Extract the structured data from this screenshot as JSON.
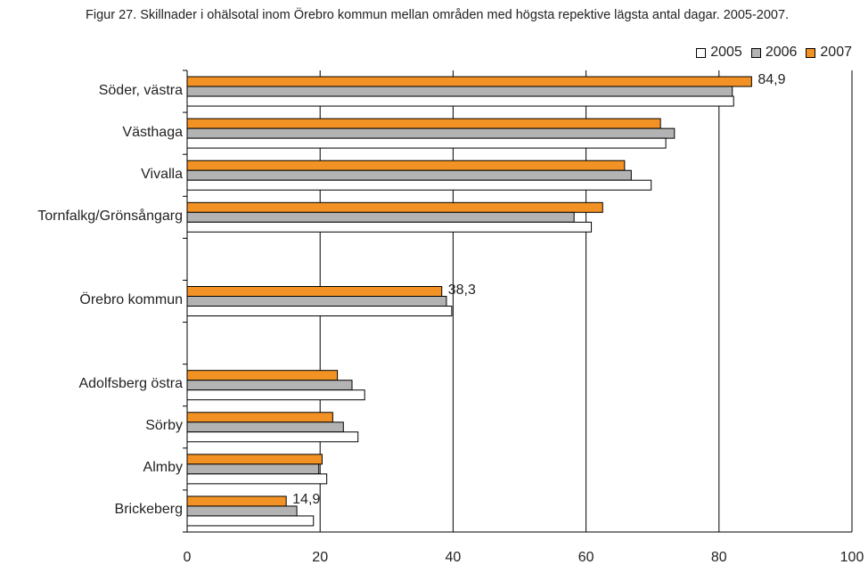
{
  "title": "Figur 27. Skillnader i ohälsotal inom Örebro kommun mellan områden med högsta repektive lägsta antal dagar. 2005-2007.",
  "chart_data": {
    "type": "bar",
    "orientation": "horizontal",
    "categories": [
      "Söder, västra",
      "Västhaga",
      "Vivalla",
      "Tornfalkg/Grönsångarg",
      "",
      "Örebro kommun",
      "",
      "Adolfsberg östra",
      "Sörby",
      "Almby",
      "Brickeberg"
    ],
    "series": [
      {
        "name": "2005",
        "color": "#ffffff",
        "values": [
          82.2,
          72.0,
          69.8,
          60.8,
          null,
          39.8,
          null,
          26.7,
          25.7,
          21.0,
          19.0
        ]
      },
      {
        "name": "2006",
        "color": "#b3b3b3",
        "values": [
          82.0,
          73.3,
          66.8,
          58.2,
          null,
          39.0,
          null,
          24.8,
          23.5,
          19.8,
          16.5
        ]
      },
      {
        "name": "2007",
        "color": "#f39224",
        "values": [
          84.9,
          71.2,
          65.8,
          62.5,
          null,
          38.3,
          null,
          22.6,
          21.9,
          20.3,
          14.9
        ]
      }
    ],
    "data_labels": [
      {
        "category_index": 0,
        "text": "84,9"
      },
      {
        "category_index": 5,
        "text": "38,3"
      },
      {
        "category_index": 10,
        "text": "14,9"
      }
    ],
    "xlim": [
      0,
      100
    ],
    "xticks": [
      "0",
      "20",
      "40",
      "60",
      "80",
      "100"
    ],
    "grid": "vertical",
    "legend_position": "top-right"
  }
}
